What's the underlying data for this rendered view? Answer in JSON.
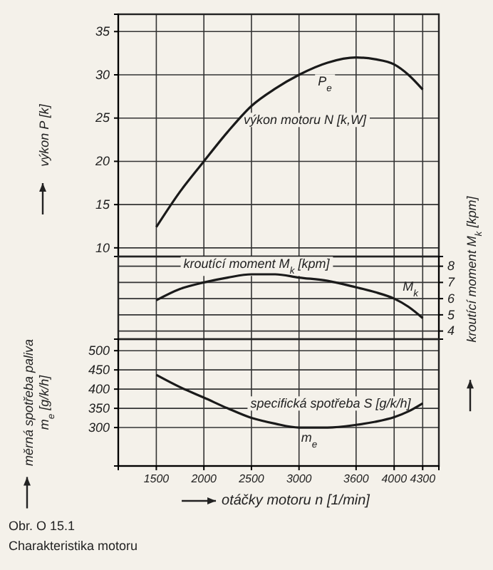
{
  "chart_data": [
    {
      "type": "line",
      "xlim": [
        1100,
        4470
      ],
      "xticks": [
        1500,
        2000,
        2500,
        3000,
        3600,
        4000,
        4300
      ],
      "ylim": [
        9,
        37
      ],
      "yticks": [
        10,
        15,
        20,
        25,
        30,
        35
      ],
      "ylabel": "výkon P [k]",
      "grid": true,
      "tick_labels": "y",
      "x": [
        1500,
        1750,
        2000,
        2250,
        2500,
        2750,
        3000,
        3300,
        3600,
        3800,
        4000,
        4150,
        4300
      ],
      "series": [
        {
          "color": "#1a1a1a",
          "values": [
            12.4,
            16.5,
            20.0,
            23.4,
            26.4,
            28.4,
            30.0,
            31.4,
            32.0,
            31.8,
            31.2,
            30.0,
            28.3
          ]
        }
      ],
      "annotations": [
        "P$_{e}$",
        "výkon motoru N [k,W]"
      ]
    },
    {
      "type": "line",
      "xlim": [
        1100,
        4470
      ],
      "xticks": [
        1500,
        2000,
        2500,
        3000,
        3600,
        4000,
        4300
      ],
      "y2lim": [
        3.5,
        8.6
      ],
      "y2ticks": [
        4,
        5,
        6,
        7,
        8
      ],
      "y2label": "kroutící moment M$_{k}$ [kpm]",
      "grid": true,
      "tick_labels": "y",
      "x": [
        1500,
        1750,
        2000,
        2250,
        2500,
        2750,
        3000,
        3300,
        3600,
        3800,
        4000,
        4150,
        4300
      ],
      "series": [
        {
          "color": "#1a1a1a",
          "axis": "y2",
          "values": [
            5.9,
            6.6,
            7.0,
            7.3,
            7.5,
            7.5,
            7.3,
            7.1,
            6.7,
            6.4,
            6.0,
            5.5,
            4.8
          ]
        }
      ],
      "annotations": [
        "kroutící moment M$_{k}$ [kpm]",
        "M$_{k}$"
      ]
    },
    {
      "type": "line",
      "xlim": [
        1100,
        4470
      ],
      "xticks": [
        1500,
        2000,
        2500,
        3000,
        3600,
        4000,
        4300
      ],
      "ylim": [
        200,
        530
      ],
      "yticks": [
        300,
        350,
        400,
        450,
        500
      ],
      "xlabel": "otáčky motoru n [1/min]",
      "ylabel": "měrná spotřeba paliva m$_{e}$ [g/k/h]",
      "grid": true,
      "x": [
        1500,
        1750,
        2000,
        2250,
        2500,
        2750,
        3000,
        3300,
        3600,
        3800,
        4000,
        4150,
        4300
      ],
      "series": [
        {
          "color": "#1a1a1a",
          "values": [
            437,
            405,
            378,
            350,
            325,
            310,
            300,
            300,
            307,
            315,
            327,
            342,
            363
          ]
        }
      ],
      "annotations": [
        "specifická spotřeba S [g/k/h]",
        "m$_{e}$",
        "Obr. O 15.1",
        "Charakteristika motoru"
      ]
    }
  ]
}
